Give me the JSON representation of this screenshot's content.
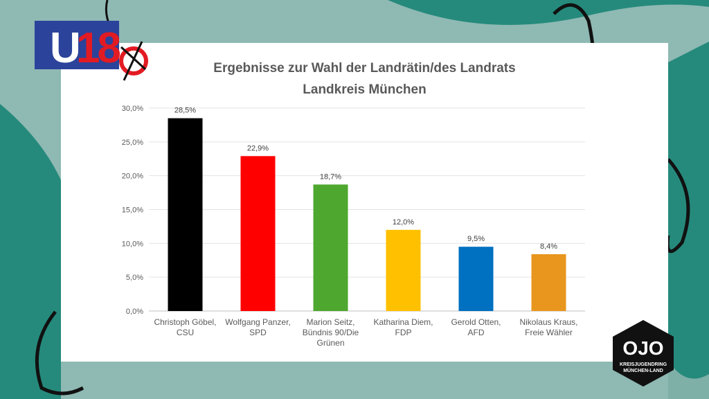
{
  "logo": {
    "text": "U18",
    "org_name": "OJO",
    "org_line1": "KREISJUGENDRING",
    "org_line2": "MÜNCHEN-LAND"
  },
  "chart_data": {
    "type": "bar",
    "title": "Ergebnisse zur Wahl der Landrätin/des Landrats",
    "subtitle": "Landkreis München",
    "categories": [
      [
        "Christoph Göbel,",
        "CSU"
      ],
      [
        "Wolfgang Panzer,",
        "SPD"
      ],
      [
        "Marion Seitz,",
        "Bündnis 90/Die",
        "Grünen"
      ],
      [
        "Katharina Diem,",
        "FDP"
      ],
      [
        "Gerold Otten,",
        "AFD"
      ],
      [
        "Nikolaus Kraus,",
        "Freie Wähler"
      ]
    ],
    "values": [
      28.5,
      22.9,
      18.7,
      12.0,
      9.5,
      8.4
    ],
    "labels": [
      "28,5%",
      "22,9%",
      "18,7%",
      "12,0%",
      "9,5%",
      "8,4%"
    ],
    "colors": [
      "#000000",
      "#ff0000",
      "#4ea72e",
      "#ffc000",
      "#0070c0",
      "#e8961e"
    ],
    "yticks": [
      "0,0%",
      "5,0%",
      "10,0%",
      "15,0%",
      "20,0%",
      "25,0%",
      "30,0%"
    ],
    "ylim": [
      0,
      30
    ],
    "grid": true
  }
}
